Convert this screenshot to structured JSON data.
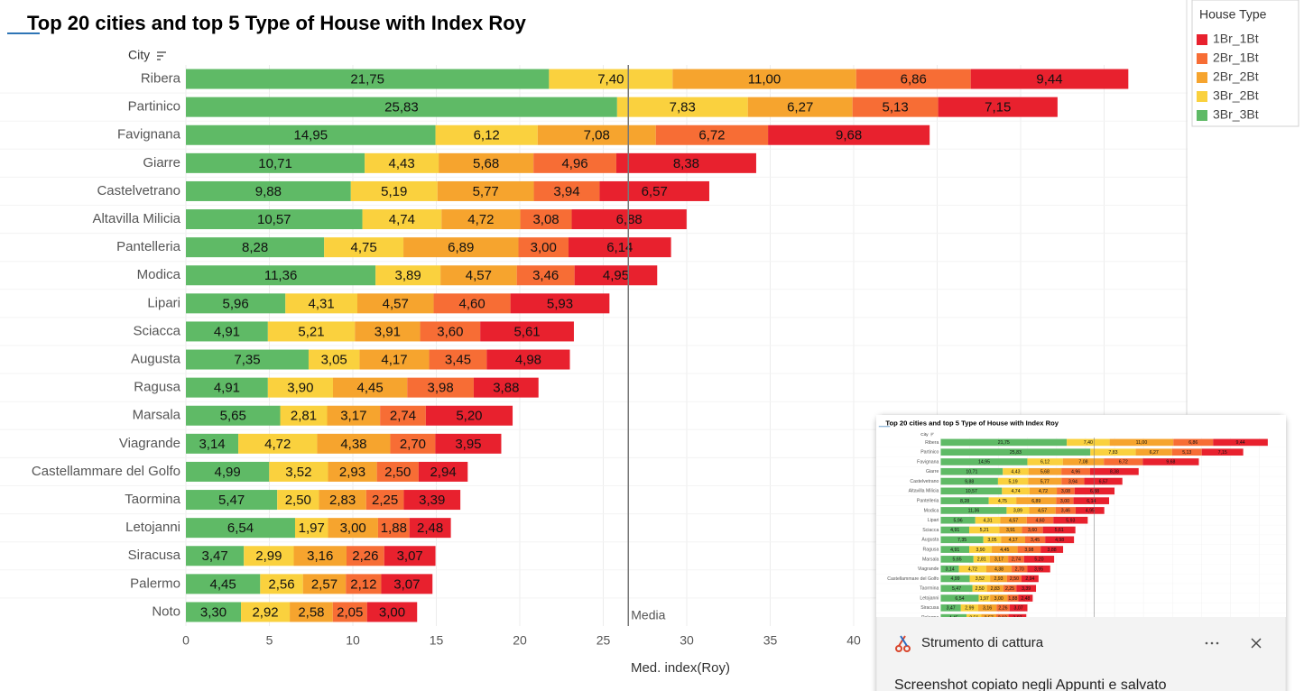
{
  "chart_data": {
    "type": "stacked-bar",
    "title": "Top 20 cities and top 5 Type of House with Index Roy",
    "y_label": "City",
    "x_label": "Med. index(Roy)",
    "legend_title": "House Type",
    "legend_position": "top-right",
    "grid": true,
    "categories": [
      "Ribera",
      "Partinico",
      "Favignana",
      "Giarre",
      "Castelvetrano",
      "Altavilla Milicia",
      "Pantelleria",
      "Modica",
      "Lipari",
      "Sciacca",
      "Augusta",
      "Ragusa",
      "Marsala",
      "Viagrande",
      "Castellammare del Golfo",
      "Taormina",
      "Letojanni",
      "Siracusa",
      "Palermo",
      "Noto"
    ],
    "series": [
      {
        "name": "1Br_1Bt",
        "color": "#e8212e",
        "values": [
          9.44,
          7.15,
          9.68,
          8.38,
          6.57,
          6.88,
          6.14,
          4.95,
          5.93,
          5.61,
          4.98,
          3.88,
          5.2,
          3.95,
          2.94,
          3.39,
          2.48,
          3.07,
          3.07,
          3.0
        ],
        "value_labels": [
          "9,44",
          "7,15",
          "9,68",
          "8,38",
          "6,57",
          "6,88",
          "6,14",
          "4,95",
          "5,93",
          "5,61",
          "4,98",
          "3,88",
          "5,20",
          "3,95",
          "2,94",
          "3,39",
          "2,48",
          "3,07",
          "3,07",
          "3,00"
        ]
      },
      {
        "name": "2Br_1Bt",
        "color": "#f76d35",
        "values": [
          6.86,
          5.13,
          6.72,
          4.96,
          3.94,
          3.08,
          3.0,
          3.46,
          4.6,
          3.6,
          3.45,
          3.98,
          2.74,
          2.7,
          2.5,
          2.25,
          1.88,
          2.26,
          2.12,
          2.05
        ],
        "value_labels": [
          "6,86",
          "5,13",
          "6,72",
          "4,96",
          "3,94",
          "3,08",
          "3,00",
          "3,46",
          "4,60",
          "3,60",
          "3,45",
          "3,98",
          "2,74",
          "2,70",
          "2,50",
          "2,25",
          "1,88",
          "2,26",
          "2,12",
          "2,05"
        ]
      },
      {
        "name": "2Br_2Bt",
        "color": "#f6a42e",
        "values": [
          11.0,
          6.27,
          7.08,
          5.68,
          5.77,
          4.72,
          6.89,
          4.57,
          4.57,
          3.91,
          4.17,
          4.45,
          3.17,
          4.38,
          2.93,
          2.83,
          3.0,
          3.16,
          2.57,
          2.58
        ],
        "value_labels": [
          "11,00",
          "6,27",
          "7,08",
          "5,68",
          "5,77",
          "4,72",
          "6,89",
          "4,57",
          "4,57",
          "3,91",
          "4,17",
          "4,45",
          "3,17",
          "4,38",
          "2,93",
          "2,83",
          "3,00",
          "3,16",
          "2,57",
          "2,58"
        ]
      },
      {
        "name": "3Br_2Bt",
        "color": "#fad13e",
        "values": [
          7.4,
          7.83,
          6.12,
          4.43,
          5.19,
          4.74,
          4.75,
          3.89,
          4.31,
          5.21,
          3.05,
          3.9,
          2.81,
          4.72,
          3.52,
          2.5,
          1.97,
          2.99,
          2.56,
          2.92
        ],
        "value_labels": [
          "7,40",
          "7,83",
          "6,12",
          "4,43",
          "5,19",
          "4,74",
          "4,75",
          "3,89",
          "4,31",
          "5,21",
          "3,05",
          "3,90",
          "2,81",
          "4,72",
          "3,52",
          "2,50",
          "1,97",
          "2,99",
          "2,56",
          "2,92"
        ]
      },
      {
        "name": "3Br_3Bt",
        "color": "#5fba66",
        "values": [
          21.75,
          25.83,
          14.95,
          10.71,
          9.88,
          10.57,
          8.28,
          11.36,
          5.96,
          4.91,
          7.35,
          4.91,
          5.65,
          3.14,
          4.99,
          5.47,
          6.54,
          3.47,
          4.45,
          3.3
        ],
        "value_labels": [
          "21,75",
          "25,83",
          "14,95",
          "10,71",
          "9,88",
          "10,57",
          "8,28",
          "11,36",
          "5,96",
          "4,91",
          "7,35",
          "4,91",
          "5,65",
          "3,14",
          "4,99",
          "5,47",
          "6,54",
          "3,47",
          "4,45",
          "3,30"
        ]
      }
    ],
    "xlim": [
      0,
      60
    ],
    "xticks": [
      0,
      5,
      10,
      15,
      20,
      25,
      30,
      35,
      40,
      45,
      50,
      55
    ],
    "reference_line": {
      "value": 26.5,
      "label": "Media"
    }
  },
  "notification": {
    "app": "Strumento di cattura",
    "message": "Screenshot copiato negli Appunti e salvato"
  }
}
